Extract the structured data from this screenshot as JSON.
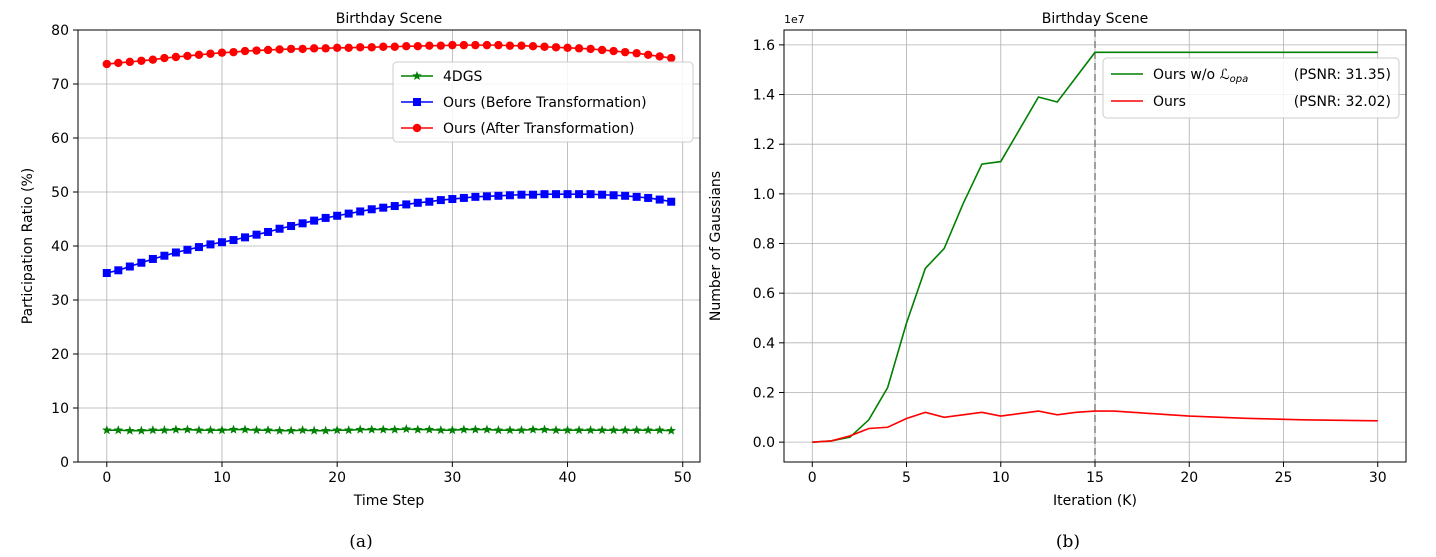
{
  "captions": {
    "a": "(a)",
    "b": "(b)"
  },
  "chart_data": [
    {
      "type": "line",
      "title": "Birthday Scene",
      "xlabel": "Time Step",
      "ylabel": "Participation Ratio (%)",
      "xlim": [
        -2.5,
        51.5
      ],
      "ylim": [
        0,
        80
      ],
      "xticks": [
        0,
        10,
        20,
        30,
        40,
        50
      ],
      "yticks": [
        0,
        10,
        20,
        30,
        40,
        50,
        60,
        70,
        80
      ],
      "grid": true,
      "legend_position": "upper-right",
      "series": [
        {
          "name": "4DGS",
          "color": "#008000",
          "marker": "star",
          "x": [
            0,
            1,
            2,
            3,
            4,
            5,
            6,
            7,
            8,
            9,
            10,
            11,
            12,
            13,
            14,
            15,
            16,
            17,
            18,
            19,
            20,
            21,
            22,
            23,
            24,
            25,
            26,
            27,
            28,
            29,
            30,
            31,
            32,
            33,
            34,
            35,
            36,
            37,
            38,
            39,
            40,
            41,
            42,
            43,
            44,
            45,
            46,
            47,
            48,
            49
          ],
          "y": [
            5.9,
            5.9,
            5.8,
            5.8,
            5.9,
            5.9,
            6.0,
            6.0,
            5.9,
            5.9,
            5.9,
            6.0,
            6.0,
            5.9,
            5.9,
            5.8,
            5.8,
            5.9,
            5.8,
            5.8,
            5.9,
            5.9,
            6.0,
            6.0,
            6.0,
            6.0,
            6.1,
            6.0,
            6.0,
            5.9,
            5.9,
            6.0,
            6.0,
            6.0,
            5.9,
            5.9,
            5.9,
            6.0,
            6.0,
            5.9,
            5.9,
            5.9,
            5.9,
            5.9,
            5.9,
            5.9,
            5.9,
            5.9,
            5.9,
            5.8
          ]
        },
        {
          "name": "Ours (Before Transformation)",
          "color": "#0000ff",
          "marker": "square",
          "x": [
            0,
            1,
            2,
            3,
            4,
            5,
            6,
            7,
            8,
            9,
            10,
            11,
            12,
            13,
            14,
            15,
            16,
            17,
            18,
            19,
            20,
            21,
            22,
            23,
            24,
            25,
            26,
            27,
            28,
            29,
            30,
            31,
            32,
            33,
            34,
            35,
            36,
            37,
            38,
            39,
            40,
            41,
            42,
            43,
            44,
            45,
            46,
            47,
            48,
            49
          ],
          "y": [
            35.0,
            35.5,
            36.2,
            36.9,
            37.6,
            38.2,
            38.8,
            39.3,
            39.8,
            40.3,
            40.7,
            41.1,
            41.6,
            42.1,
            42.6,
            43.2,
            43.7,
            44.2,
            44.7,
            45.2,
            45.6,
            46.0,
            46.4,
            46.8,
            47.1,
            47.4,
            47.7,
            48.0,
            48.2,
            48.5,
            48.7,
            48.9,
            49.1,
            49.2,
            49.3,
            49.4,
            49.5,
            49.5,
            49.6,
            49.6,
            49.6,
            49.6,
            49.6,
            49.5,
            49.4,
            49.3,
            49.1,
            48.9,
            48.6,
            48.2
          ]
        },
        {
          "name": "Ours (After Transformation)",
          "color": "#ff0000",
          "marker": "circle",
          "x": [
            0,
            1,
            2,
            3,
            4,
            5,
            6,
            7,
            8,
            9,
            10,
            11,
            12,
            13,
            14,
            15,
            16,
            17,
            18,
            19,
            20,
            21,
            22,
            23,
            24,
            25,
            26,
            27,
            28,
            29,
            30,
            31,
            32,
            33,
            34,
            35,
            36,
            37,
            38,
            39,
            40,
            41,
            42,
            43,
            44,
            45,
            46,
            47,
            48,
            49
          ],
          "y": [
            73.7,
            73.9,
            74.1,
            74.3,
            74.5,
            74.8,
            75.0,
            75.2,
            75.4,
            75.6,
            75.8,
            75.9,
            76.1,
            76.2,
            76.3,
            76.4,
            76.5,
            76.5,
            76.6,
            76.6,
            76.7,
            76.7,
            76.8,
            76.8,
            76.9,
            76.9,
            77.0,
            77.0,
            77.1,
            77.1,
            77.2,
            77.2,
            77.2,
            77.2,
            77.2,
            77.1,
            77.1,
            77.0,
            76.9,
            76.8,
            76.7,
            76.6,
            76.5,
            76.3,
            76.1,
            75.9,
            75.7,
            75.4,
            75.1,
            74.8
          ]
        }
      ]
    },
    {
      "type": "line",
      "title": "Birthday Scene",
      "xlabel": "Iteration (K)",
      "ylabel": "Number of Gaussians",
      "scale_label": "1e7",
      "xlim": [
        -1.5,
        31.5
      ],
      "ylim": [
        -0.08,
        1.66
      ],
      "xticks": [
        0,
        5,
        10,
        15,
        20,
        25,
        30
      ],
      "yticks": [
        0.0,
        0.2,
        0.4,
        0.6,
        0.8,
        1.0,
        1.2,
        1.4,
        1.6
      ],
      "ytick_labels": [
        "0.0",
        "0.2",
        "0.4",
        "0.6",
        "0.8",
        "1.0",
        "1.2",
        "1.4",
        "1.6"
      ],
      "grid": true,
      "vline_x": 15,
      "legend_position": "upper-right",
      "series": [
        {
          "name": "Ours w/o ℒ",
          "name_sub": "opa",
          "psnr": "(PSNR: 31.35)",
          "color": "#008000",
          "x": [
            0,
            1,
            2,
            3,
            4,
            5,
            6,
            7,
            8,
            9,
            10,
            11,
            12,
            13,
            14,
            15,
            16,
            17,
            18,
            19,
            20,
            21,
            22,
            23,
            24,
            25,
            26,
            27,
            28,
            29,
            30
          ],
          "y": [
            0.0,
            0.005,
            0.02,
            0.09,
            0.22,
            0.48,
            0.7,
            0.78,
            0.96,
            1.12,
            1.13,
            1.26,
            1.39,
            1.37,
            1.47,
            1.57,
            1.57,
            1.57,
            1.57,
            1.57,
            1.57,
            1.57,
            1.57,
            1.57,
            1.57,
            1.57,
            1.57,
            1.57,
            1.57,
            1.57,
            1.57
          ]
        },
        {
          "name": "Ours",
          "name_sub": "",
          "psnr": "(PSNR: 32.02)",
          "color": "#ff0000",
          "x": [
            0,
            1,
            2,
            3,
            4,
            5,
            6,
            7,
            8,
            9,
            10,
            11,
            12,
            13,
            14,
            15,
            16,
            17,
            18,
            19,
            20,
            21,
            22,
            23,
            24,
            25,
            26,
            27,
            28,
            29,
            30
          ],
          "y": [
            0.0,
            0.005,
            0.025,
            0.055,
            0.06,
            0.095,
            0.12,
            0.1,
            0.11,
            0.12,
            0.105,
            0.115,
            0.125,
            0.11,
            0.12,
            0.125,
            0.125,
            0.12,
            0.115,
            0.11,
            0.105,
            0.102,
            0.099,
            0.096,
            0.094,
            0.092,
            0.09,
            0.089,
            0.088,
            0.087,
            0.086
          ]
        }
      ]
    }
  ]
}
